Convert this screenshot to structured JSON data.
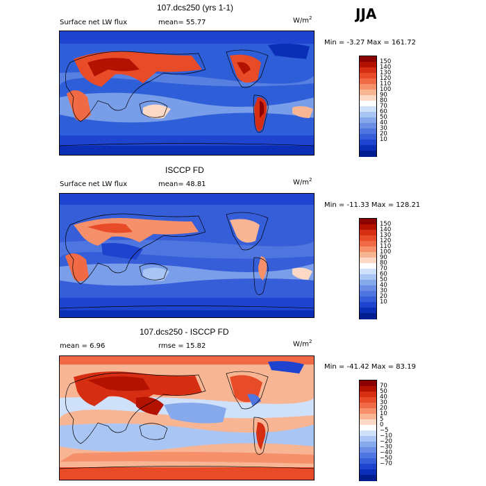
{
  "season": "JJA",
  "panels": [
    {
      "title": "107.dcs250 (yrs 1-1)",
      "left_text": "Surface net LW flux",
      "mid_text": "mean=  55.77",
      "units": "W/m",
      "units_sup": "2",
      "minmax": "Min =   -3.27 Max = 161.72",
      "colorbar": {
        "labels": [
          "150",
          "140",
          "130",
          "120",
          "110",
          "100",
          "90",
          "80",
          "70",
          "60",
          "50",
          "40",
          "30",
          "20",
          "10"
        ],
        "colors": [
          "#8b0000",
          "#b31200",
          "#d62e12",
          "#e84b28",
          "#f06a45",
          "#f5906b",
          "#f8b594",
          "#fbd9c4",
          "#ffffff",
          "#cfe0fb",
          "#a9c5f4",
          "#86a9ec",
          "#6a8ee6",
          "#4f75e0",
          "#365ed8",
          "#1e44cf",
          "#0a2fb6",
          "#001c8f"
        ]
      }
    },
    {
      "title": "ISCCP FD",
      "left_text": "Surface net LW flux",
      "mid_text": "mean=  48.81",
      "units": "W/m",
      "units_sup": "2",
      "minmax": "Min = -11.33 Max = 128.21",
      "colorbar": {
        "labels": [
          "150",
          "140",
          "130",
          "120",
          "110",
          "100",
          "90",
          "80",
          "70",
          "60",
          "50",
          "40",
          "30",
          "20",
          "10"
        ],
        "colors": [
          "#8b0000",
          "#b31200",
          "#d62e12",
          "#e84b28",
          "#f06a45",
          "#f5906b",
          "#f8b594",
          "#fbd9c4",
          "#ffffff",
          "#cfe0fb",
          "#a9c5f4",
          "#86a9ec",
          "#6a8ee6",
          "#4f75e0",
          "#365ed8",
          "#1e44cf",
          "#0a2fb6",
          "#001c8f"
        ]
      }
    },
    {
      "title": "107.dcs250 - ISCCP FD",
      "left_text": "mean =    6.96",
      "mid_text": "rmse =   15.82",
      "units": "W/m",
      "units_sup": "2",
      "minmax": "Min = -41.42 Max =  83.19",
      "colorbar": {
        "labels": [
          "70",
          "50",
          "40",
          "30",
          "20",
          "10",
          "5",
          "0",
          "−5",
          "−10",
          "−20",
          "−30",
          "−40",
          "−50",
          "−70"
        ],
        "colors": [
          "#8b0000",
          "#b31200",
          "#d62e12",
          "#e84b28",
          "#f06a45",
          "#f5906b",
          "#f8b594",
          "#fbd9c4",
          "#ffffff",
          "#cfe0fb",
          "#a9c5f4",
          "#86a9ec",
          "#6a8ee6",
          "#4f75e0",
          "#365ed8",
          "#1e44cf",
          "#0a2fb6",
          "#001c8f"
        ]
      }
    }
  ]
}
